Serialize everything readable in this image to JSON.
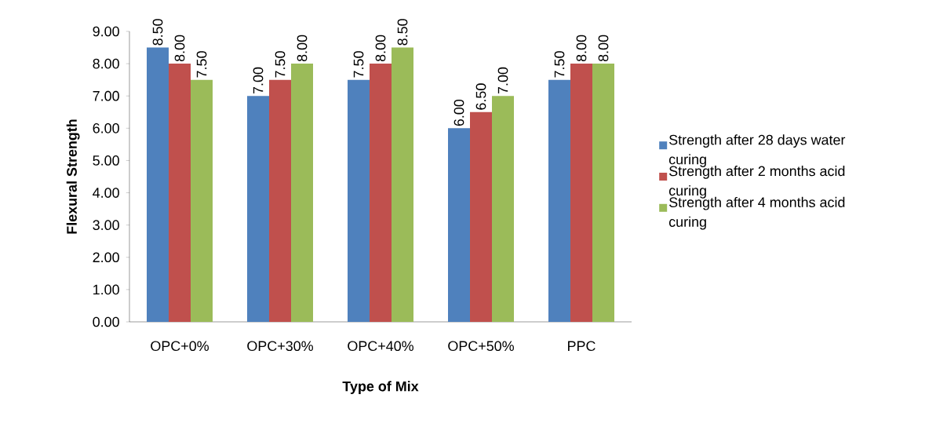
{
  "chart_data": {
    "type": "bar",
    "xlabel": "Type of Mix",
    "ylabel": "Flexural Strength",
    "categories": [
      "OPC+0%",
      "OPC+30%",
      "OPC+40%",
      "OPC+50%",
      "PPC"
    ],
    "series": [
      {
        "name": "Strength after 28 days water curing",
        "color": "#4f81bd",
        "values": [
          8.5,
          7.0,
          7.5,
          6.0,
          7.5
        ],
        "value_labels": [
          "8.50",
          "7.00",
          "7.50",
          "6.00",
          "7.50"
        ]
      },
      {
        "name": "Strength after 2 months acid curing",
        "color": "#c0504d",
        "values": [
          8.0,
          7.5,
          8.0,
          6.5,
          8.0
        ],
        "value_labels": [
          "8.00",
          "7.50",
          "8.00",
          "6.50",
          "8.00"
        ]
      },
      {
        "name": "Strength after 4 months acid curing",
        "color": "#9bbb59",
        "values": [
          7.5,
          8.0,
          8.5,
          7.0,
          8.0
        ],
        "value_labels": [
          "7.50",
          "8.00",
          "8.50",
          "7.00",
          "8.00"
        ]
      }
    ],
    "ylim": [
      0,
      9
    ],
    "yticks": [
      {
        "value": 0,
        "label": "0.00"
      },
      {
        "value": 1,
        "label": "1.00"
      },
      {
        "value": 2,
        "label": "2.00"
      },
      {
        "value": 3,
        "label": "3.00"
      },
      {
        "value": 4,
        "label": "4.00"
      },
      {
        "value": 5,
        "label": "5.00"
      },
      {
        "value": 6,
        "label": "6.00"
      },
      {
        "value": 7,
        "label": "7.00"
      },
      {
        "value": 8,
        "label": "8.00"
      },
      {
        "value": 9,
        "label": "9.00"
      }
    ],
    "legend": "right"
  }
}
